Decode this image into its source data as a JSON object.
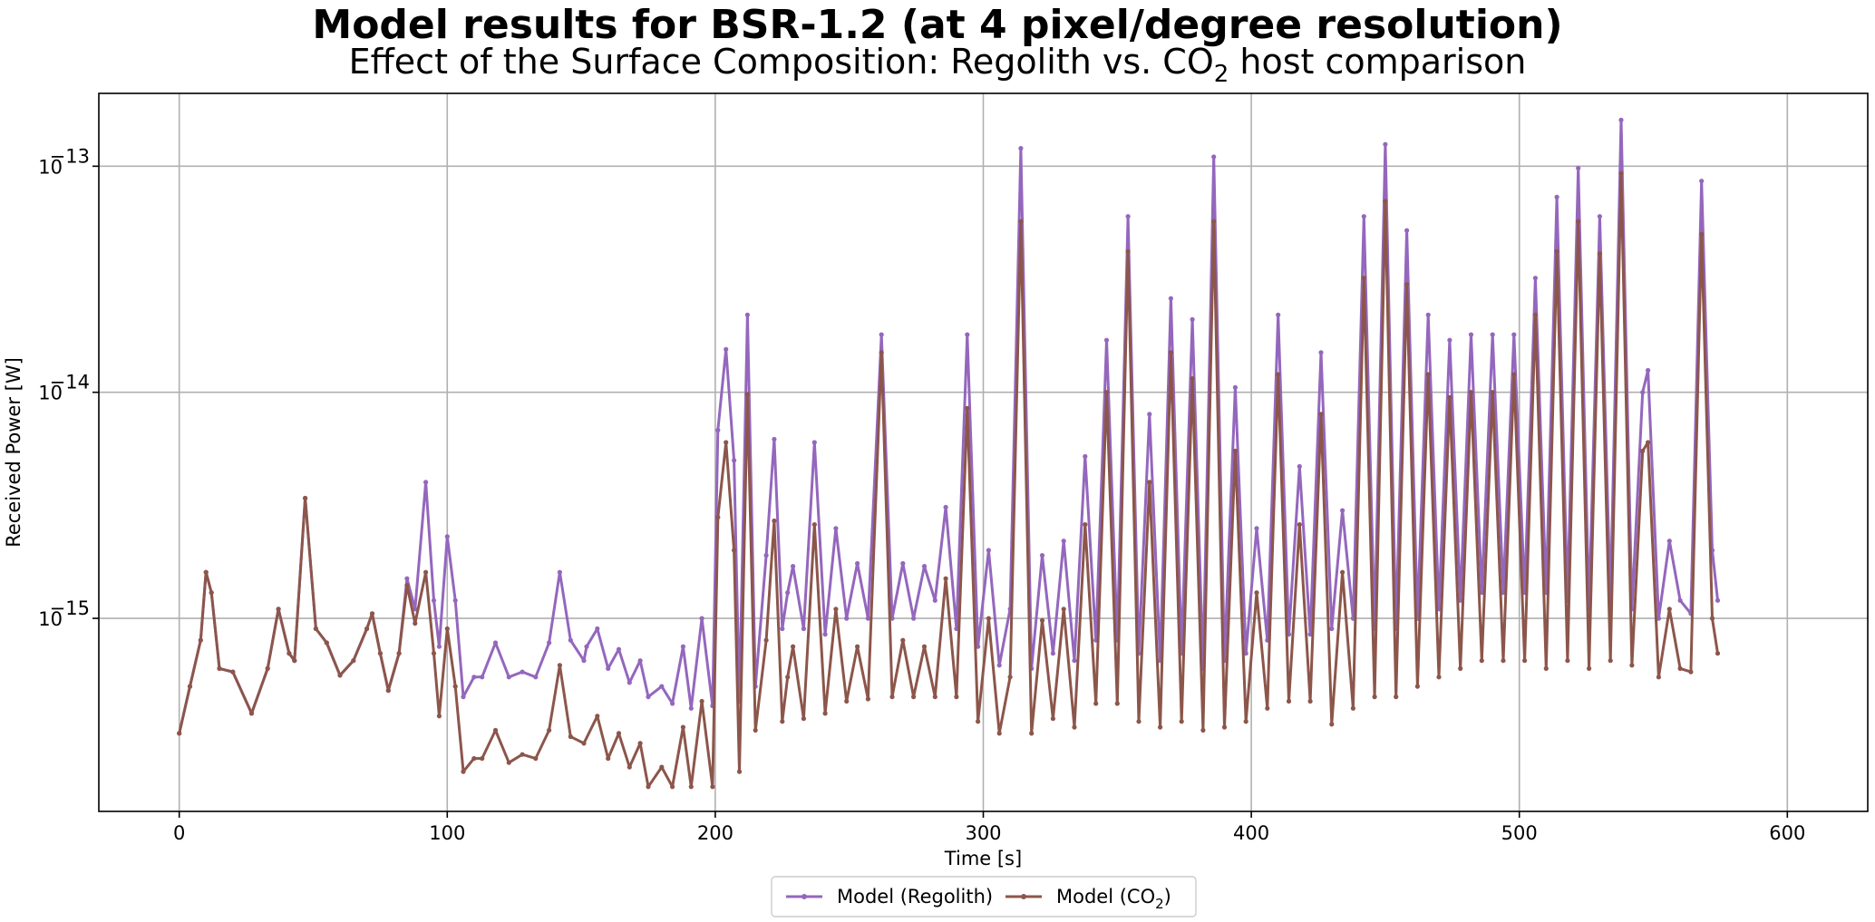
{
  "chart_data": {
    "type": "line",
    "title": "Model results for BSR-1.2 (at 4 pixel/degree resolution)",
    "subtitle": {
      "prefix": "Effect of the Surface Composition: Regolith vs. CO",
      "subscript": "2",
      "suffix": " host comparison"
    },
    "xlabel": "Time [s]",
    "ylabel": "Received Power [W]",
    "xlim": [
      -30,
      630
    ],
    "ylim": [
      1.4e-16,
      2.1e-13
    ],
    "yscale": "log",
    "grid": true,
    "legend_position": "bottom-center",
    "x_ticks": [
      0,
      100,
      200,
      300,
      400,
      500,
      600
    ],
    "y_ticks": [
      {
        "value": 1e-15,
        "base": "10",
        "exponent": "−15"
      },
      {
        "value": 1e-14,
        "base": "10",
        "exponent": "−14"
      },
      {
        "value": 1e-13,
        "base": "10",
        "exponent": "−13"
      }
    ],
    "series": [
      {
        "name": "Model (Regolith)",
        "legend_label": {
          "prefix": "Model (Regolith)",
          "subscript": "",
          "suffix": ""
        },
        "color": "#9467bd",
        "points": [
          [
            0,
            3.1e-16
          ],
          [
            4,
            5e-16
          ],
          [
            8,
            8e-16
          ],
          [
            10,
            1.6e-15
          ],
          [
            12,
            1.3e-15
          ],
          [
            15,
            6e-16
          ],
          [
            20,
            5.8e-16
          ],
          [
            27,
            3.8e-16
          ],
          [
            33,
            6e-16
          ],
          [
            37,
            1.1e-15
          ],
          [
            41,
            7e-16
          ],
          [
            43,
            6.5e-16
          ],
          [
            47,
            3.4e-15
          ],
          [
            51,
            9e-16
          ],
          [
            55,
            7.8e-16
          ],
          [
            60,
            5.6e-16
          ],
          [
            65,
            6.5e-16
          ],
          [
            70,
            9e-16
          ],
          [
            72,
            1.05e-15
          ],
          [
            75,
            7e-16
          ],
          [
            78,
            4.8e-16
          ],
          [
            82,
            7e-16
          ],
          [
            85,
            1.5e-15
          ],
          [
            88,
            1.1e-15
          ],
          [
            92,
            4e-15
          ],
          [
            95,
            1.2e-15
          ],
          [
            97,
            7.5e-16
          ],
          [
            100,
            2.3e-15
          ],
          [
            103,
            1.2e-15
          ],
          [
            106,
            4.5e-16
          ],
          [
            110,
            5.5e-16
          ],
          [
            113,
            5.5e-16
          ],
          [
            118,
            7.8e-16
          ],
          [
            123,
            5.5e-16
          ],
          [
            128,
            5.8e-16
          ],
          [
            133,
            5.5e-16
          ],
          [
            138,
            7.8e-16
          ],
          [
            142,
            1.6e-15
          ],
          [
            146,
            8e-16
          ],
          [
            151,
            6.5e-16
          ],
          [
            152,
            7.5e-16
          ],
          [
            156,
            9e-16
          ],
          [
            160,
            6e-16
          ],
          [
            164,
            7.3e-16
          ],
          [
            168,
            5.2e-16
          ],
          [
            172,
            6.5e-16
          ],
          [
            175,
            4.5e-16
          ],
          [
            180,
            5e-16
          ],
          [
            184,
            4.2e-16
          ],
          [
            188,
            7.5e-16
          ],
          [
            191,
            4e-16
          ],
          [
            195,
            1e-15
          ],
          [
            199,
            4.1e-16
          ],
          [
            201,
            6.8e-15
          ],
          [
            204,
            1.55e-14
          ],
          [
            207,
            5e-15
          ],
          [
            209,
            4.3e-16
          ],
          [
            212,
            2.2e-14
          ],
          [
            215,
            5e-16
          ],
          [
            219,
            1.9e-15
          ],
          [
            222,
            6.2e-15
          ],
          [
            225,
            9e-16
          ],
          [
            227,
            1.3e-15
          ],
          [
            229,
            1.7e-15
          ],
          [
            233,
            9e-16
          ],
          [
            237,
            6e-15
          ],
          [
            241,
            8.5e-16
          ],
          [
            245,
            2.5e-15
          ],
          [
            249,
            1e-15
          ],
          [
            253,
            1.75e-15
          ],
          [
            257,
            1e-15
          ],
          [
            262,
            1.8e-14
          ],
          [
            266,
            1e-15
          ],
          [
            270,
            1.75e-15
          ],
          [
            274,
            1e-15
          ],
          [
            278,
            1.7e-15
          ],
          [
            282,
            1.2e-15
          ],
          [
            286,
            3.1e-15
          ],
          [
            290,
            9e-16
          ],
          [
            294,
            1.8e-14
          ],
          [
            298,
            7.5e-16
          ],
          [
            302,
            2e-15
          ],
          [
            306,
            6.2e-16
          ],
          [
            310,
            1.1e-15
          ],
          [
            314,
            1.2e-13
          ],
          [
            318,
            6e-16
          ],
          [
            322,
            1.9e-15
          ],
          [
            326,
            7e-16
          ],
          [
            330,
            2.2e-15
          ],
          [
            334,
            6.5e-16
          ],
          [
            338,
            5.2e-15
          ],
          [
            342,
            8e-16
          ],
          [
            346,
            1.7e-14
          ],
          [
            350,
            8e-16
          ],
          [
            354,
            6e-14
          ],
          [
            358,
            7e-16
          ],
          [
            362,
            8e-15
          ],
          [
            366,
            6.5e-16
          ],
          [
            370,
            2.6e-14
          ],
          [
            374,
            7e-16
          ],
          [
            378,
            2.1e-14
          ],
          [
            382,
            6e-16
          ],
          [
            386,
            1.1e-13
          ],
          [
            390,
            6.5e-16
          ],
          [
            394,
            1.05e-14
          ],
          [
            398,
            7e-16
          ],
          [
            402,
            2.5e-15
          ],
          [
            406,
            8e-16
          ],
          [
            410,
            2.2e-14
          ],
          [
            414,
            8.5e-16
          ],
          [
            418,
            4.7e-15
          ],
          [
            422,
            8.5e-16
          ],
          [
            426,
            1.5e-14
          ],
          [
            430,
            9e-16
          ],
          [
            434,
            3e-15
          ],
          [
            438,
            1e-15
          ],
          [
            442,
            6e-14
          ],
          [
            446,
            9e-16
          ],
          [
            450,
            1.25e-13
          ],
          [
            454,
            9e-16
          ],
          [
            458,
            5.2e-14
          ],
          [
            462,
            1e-15
          ],
          [
            466,
            2.2e-14
          ],
          [
            470,
            1.1e-15
          ],
          [
            474,
            1.7e-14
          ],
          [
            478,
            1.2e-15
          ],
          [
            482,
            1.8e-14
          ],
          [
            486,
            1.3e-15
          ],
          [
            490,
            1.8e-14
          ],
          [
            494,
            1.3e-15
          ],
          [
            498,
            1.8e-14
          ],
          [
            502,
            1.3e-15
          ],
          [
            506,
            3.2e-14
          ],
          [
            510,
            1.3e-15
          ],
          [
            514,
            7.3e-14
          ],
          [
            518,
            1.2e-15
          ],
          [
            522,
            9.8e-14
          ],
          [
            526,
            1.1e-15
          ],
          [
            530,
            6e-14
          ],
          [
            534,
            1.2e-15
          ],
          [
            538,
            1.6e-13
          ],
          [
            542,
            1.1e-15
          ],
          [
            546,
            1e-14
          ],
          [
            548,
            1.25e-14
          ],
          [
            552,
            1e-15
          ],
          [
            556,
            2.2e-15
          ],
          [
            560,
            1.2e-15
          ],
          [
            564,
            1.05e-15
          ],
          [
            568,
            8.6e-14
          ],
          [
            572,
            2e-15
          ],
          [
            574,
            1.2e-15
          ]
        ]
      },
      {
        "name": "Model (CO2)",
        "legend_label": {
          "prefix": "Model (CO",
          "subscript": "2",
          "suffix": ")"
        },
        "color": "#8c564b",
        "points": [
          [
            0,
            3.1e-16
          ],
          [
            4,
            5e-16
          ],
          [
            8,
            8e-16
          ],
          [
            10,
            1.6e-15
          ],
          [
            12,
            1.3e-15
          ],
          [
            15,
            6e-16
          ],
          [
            20,
            5.8e-16
          ],
          [
            27,
            3.8e-16
          ],
          [
            33,
            6e-16
          ],
          [
            37,
            1.1e-15
          ],
          [
            41,
            7e-16
          ],
          [
            43,
            6.5e-16
          ],
          [
            47,
            3.4e-15
          ],
          [
            51,
            9e-16
          ],
          [
            55,
            7.8e-16
          ],
          [
            60,
            5.6e-16
          ],
          [
            65,
            6.5e-16
          ],
          [
            70,
            9e-16
          ],
          [
            72,
            1.05e-15
          ],
          [
            75,
            7e-16
          ],
          [
            78,
            4.8e-16
          ],
          [
            82,
            7e-16
          ],
          [
            85,
            1.4e-15
          ],
          [
            88,
            9.5e-16
          ],
          [
            92,
            1.6e-15
          ],
          [
            95,
            7e-16
          ],
          [
            97,
            3.7e-16
          ],
          [
            100,
            9e-16
          ],
          [
            103,
            5e-16
          ],
          [
            106,
            2.1e-16
          ],
          [
            110,
            2.4e-16
          ],
          [
            113,
            2.4e-16
          ],
          [
            118,
            3.2e-16
          ],
          [
            123,
            2.3e-16
          ],
          [
            128,
            2.5e-16
          ],
          [
            133,
            2.4e-16
          ],
          [
            138,
            3.2e-16
          ],
          [
            142,
            6.2e-16
          ],
          [
            146,
            3e-16
          ],
          [
            151,
            2.8e-16
          ],
          [
            156,
            3.7e-16
          ],
          [
            160,
            2.4e-16
          ],
          [
            164,
            3.1e-16
          ],
          [
            168,
            2.2e-16
          ],
          [
            172,
            2.8e-16
          ],
          [
            175,
            1.8e-16
          ],
          [
            180,
            2.2e-16
          ],
          [
            184,
            1.8e-16
          ],
          [
            188,
            3.3e-16
          ],
          [
            191,
            1.8e-16
          ],
          [
            195,
            4.3e-16
          ],
          [
            199,
            1.8e-16
          ],
          [
            201,
            2.8e-15
          ],
          [
            204,
            6e-15
          ],
          [
            207,
            2e-15
          ],
          [
            209,
            2.1e-16
          ],
          [
            212,
            9.8e-15
          ],
          [
            215,
            3.2e-16
          ],
          [
            219,
            8e-16
          ],
          [
            222,
            2.7e-15
          ],
          [
            225,
            3.5e-16
          ],
          [
            227,
            5.5e-16
          ],
          [
            229,
            7.5e-16
          ],
          [
            233,
            3.6e-16
          ],
          [
            237,
            2.6e-15
          ],
          [
            241,
            3.8e-16
          ],
          [
            245,
            1.1e-15
          ],
          [
            249,
            4.3e-16
          ],
          [
            253,
            7.5e-16
          ],
          [
            257,
            4.4e-16
          ],
          [
            262,
            1.5e-14
          ],
          [
            266,
            4.5e-16
          ],
          [
            270,
            8e-16
          ],
          [
            274,
            4.5e-16
          ],
          [
            278,
            7.5e-16
          ],
          [
            282,
            4.5e-16
          ],
          [
            286,
            1.5e-15
          ],
          [
            290,
            4.5e-16
          ],
          [
            294,
            8.5e-15
          ],
          [
            298,
            3.5e-16
          ],
          [
            302,
            1e-15
          ],
          [
            306,
            3.1e-16
          ],
          [
            310,
            5.5e-16
          ],
          [
            314,
            5.7e-14
          ],
          [
            318,
            3.1e-16
          ],
          [
            322,
            9.8e-16
          ],
          [
            326,
            3.6e-16
          ],
          [
            330,
            1.1e-15
          ],
          [
            334,
            3.3e-16
          ],
          [
            338,
            2.6e-15
          ],
          [
            342,
            4.2e-16
          ],
          [
            346,
            1e-14
          ],
          [
            350,
            4.2e-16
          ],
          [
            354,
            4.2e-14
          ],
          [
            358,
            3.5e-16
          ],
          [
            362,
            4e-15
          ],
          [
            366,
            3.3e-16
          ],
          [
            370,
            1.5e-14
          ],
          [
            374,
            3.5e-16
          ],
          [
            378,
            1.15e-14
          ],
          [
            382,
            3.2e-16
          ],
          [
            386,
            5.7e-14
          ],
          [
            390,
            3.3e-16
          ],
          [
            394,
            5.5e-15
          ],
          [
            398,
            3.5e-16
          ],
          [
            402,
            1.3e-15
          ],
          [
            406,
            4e-16
          ],
          [
            410,
            1.2e-14
          ],
          [
            414,
            4.3e-16
          ],
          [
            418,
            2.6e-15
          ],
          [
            422,
            4.3e-16
          ],
          [
            426,
            8e-15
          ],
          [
            430,
            3.4e-16
          ],
          [
            434,
            1.6e-15
          ],
          [
            438,
            4e-16
          ],
          [
            442,
            3.2e-14
          ],
          [
            446,
            4.5e-16
          ],
          [
            450,
            7e-14
          ],
          [
            454,
            4.5e-16
          ],
          [
            458,
            3e-14
          ],
          [
            462,
            5e-16
          ],
          [
            466,
            1.2e-14
          ],
          [
            470,
            5.5e-16
          ],
          [
            474,
            9.5e-15
          ],
          [
            478,
            6e-16
          ],
          [
            482,
            1e-14
          ],
          [
            486,
            6.5e-16
          ],
          [
            490,
            1e-14
          ],
          [
            494,
            6.5e-16
          ],
          [
            498,
            1.2e-14
          ],
          [
            502,
            6.5e-16
          ],
          [
            506,
            2.2e-14
          ],
          [
            510,
            6e-16
          ],
          [
            514,
            4.2e-14
          ],
          [
            518,
            6.5e-16
          ],
          [
            522,
            5.7e-14
          ],
          [
            526,
            6e-16
          ],
          [
            530,
            4.1e-14
          ],
          [
            534,
            6.5e-16
          ],
          [
            538,
            9.3e-14
          ],
          [
            542,
            6.2e-16
          ],
          [
            546,
            5.5e-15
          ],
          [
            548,
            6e-15
          ],
          [
            552,
            5.5e-16
          ],
          [
            556,
            1.1e-15
          ],
          [
            560,
            6e-16
          ],
          [
            564,
            5.8e-16
          ],
          [
            568,
            5e-14
          ],
          [
            572,
            1e-15
          ],
          [
            574,
            7e-16
          ]
        ]
      }
    ]
  }
}
